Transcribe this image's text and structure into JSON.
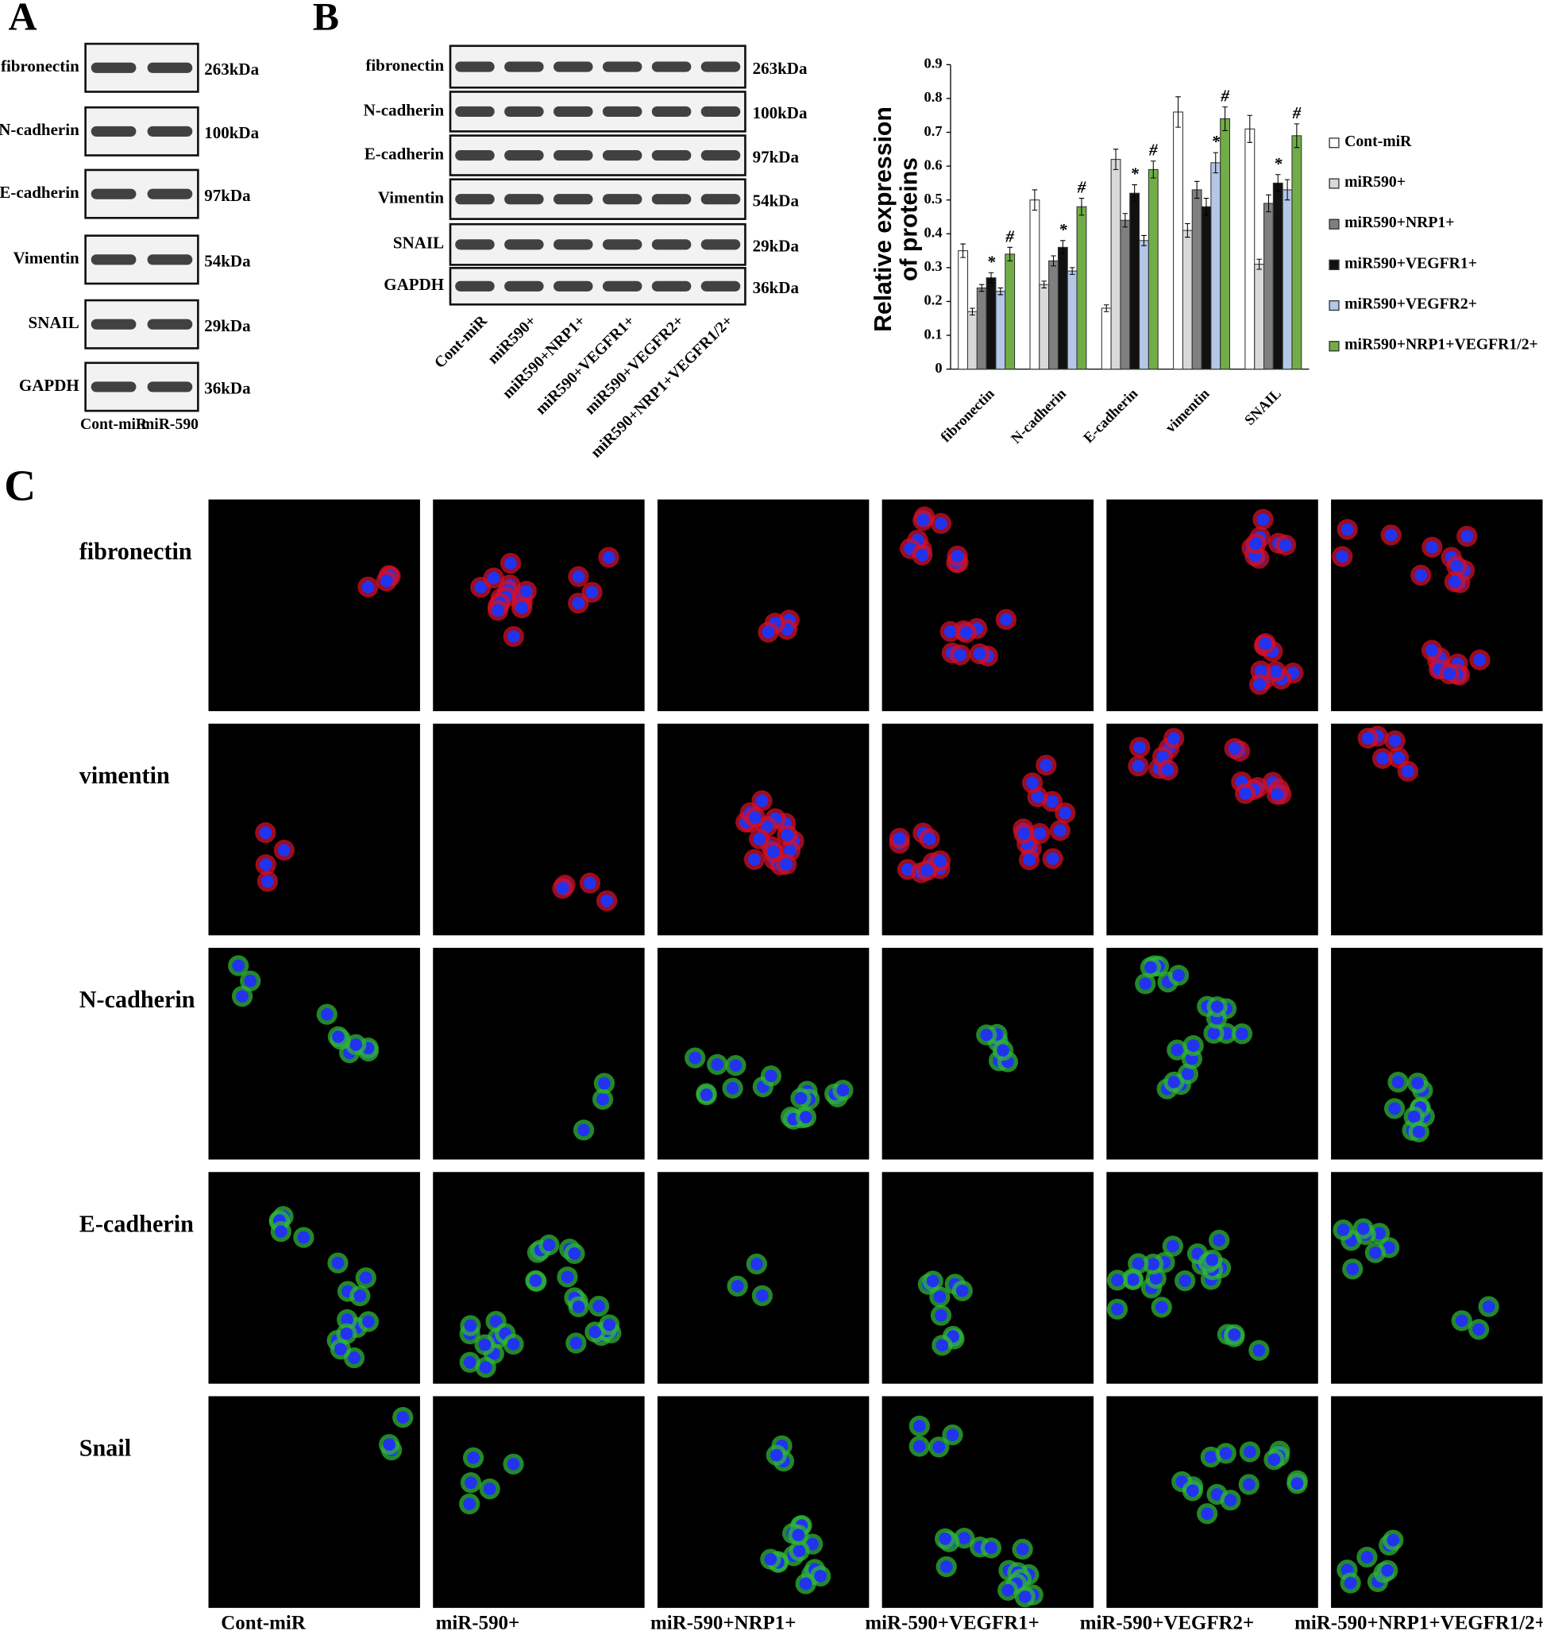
{
  "panel_a": {
    "label": "A",
    "proteins": [
      "fibronectin",
      "N-cadherin",
      "E-cadherin",
      "Vimentin",
      "SNAIL",
      "GAPDH"
    ],
    "sizes": [
      "263kDa",
      "100kDa",
      "97kDa",
      "54kDa",
      "29kDa",
      "36kDa"
    ],
    "lanes": [
      "Cont-miR",
      "miR-590"
    ]
  },
  "panel_b": {
    "label": "B",
    "proteins": [
      "fibronectin",
      "N-cadherin",
      "E-cadherin",
      "Vimentin",
      "SNAIL",
      "GAPDH"
    ],
    "sizes": [
      "263kDa",
      "100kDa",
      "97kDa",
      "54kDa",
      "29kDa",
      "36kDa"
    ],
    "lanes": [
      "Cont-miR",
      "miR590+",
      "miR590+NRP1+",
      "miR590+VEGFR1+",
      "miR590+VEGFR2+",
      "miR590+NRP1+VEGFR1/2+"
    ]
  },
  "chart_data": {
    "type": "bar",
    "y_label": "Relative expression of proteins",
    "categories": [
      "fibronectin",
      "N-cadherin",
      "E-cadherin",
      "vimentin",
      "SNAIL"
    ],
    "series": [
      {
        "name": "Cont-miR",
        "color": "#ffffff",
        "values": [
          0.35,
          0.5,
          0.18,
          0.76,
          0.71
        ],
        "errors": [
          0.02,
          0.03,
          0.01,
          0.045,
          0.04
        ]
      },
      {
        "name": "miR590+",
        "color": "#d9d9d9",
        "values": [
          0.17,
          0.25,
          0.62,
          0.41,
          0.31
        ],
        "errors": [
          0.01,
          0.01,
          0.03,
          0.02,
          0.015
        ]
      },
      {
        "name": "miR590+NRP1+",
        "color": "#7f7f7f",
        "values": [
          0.24,
          0.32,
          0.44,
          0.53,
          0.49
        ],
        "errors": [
          0.01,
          0.015,
          0.02,
          0.025,
          0.025
        ]
      },
      {
        "name": "miR590+VEGFR1+",
        "color": "#111111",
        "values": [
          0.27,
          0.36,
          0.52,
          0.48,
          0.55
        ],
        "errors": [
          0.015,
          0.02,
          0.025,
          0.025,
          0.025
        ],
        "markers": [
          "*",
          "*",
          "*",
          null,
          "*"
        ]
      },
      {
        "name": "miR590+VEGFR2+",
        "color": "#b4c7e7",
        "values": [
          0.23,
          0.29,
          0.38,
          0.61,
          0.53
        ],
        "errors": [
          0.01,
          0.01,
          0.015,
          0.03,
          0.03
        ],
        "markers": [
          null,
          null,
          null,
          "*",
          null
        ]
      },
      {
        "name": "miR590+NRP1+VEGFR1/2+",
        "color": "#70ad47",
        "values": [
          0.34,
          0.48,
          0.59,
          0.74,
          0.69
        ],
        "errors": [
          0.02,
          0.025,
          0.025,
          0.035,
          0.035
        ],
        "markers": [
          "#",
          "#",
          "#",
          "#",
          "#"
        ]
      }
    ],
    "ylim": [
      0,
      0.9
    ],
    "yticks": [
      0,
      0.1,
      0.2,
      0.3,
      0.4,
      0.5,
      0.6,
      0.7,
      0.8,
      0.9
    ],
    "legend": "right"
  },
  "panel_c": {
    "label": "C",
    "rows": [
      "fibronectin",
      "vimentin",
      "N-cadherin",
      "E-cadherin",
      "Snail"
    ],
    "columns": [
      "Cont-miR",
      "miR-590+",
      "miR-590+NRP1+",
      "miR-590+VEGFR1+",
      "miR-590+VEGFR2+",
      "miR-590+NRP1+VEGFR1/2+"
    ]
  }
}
